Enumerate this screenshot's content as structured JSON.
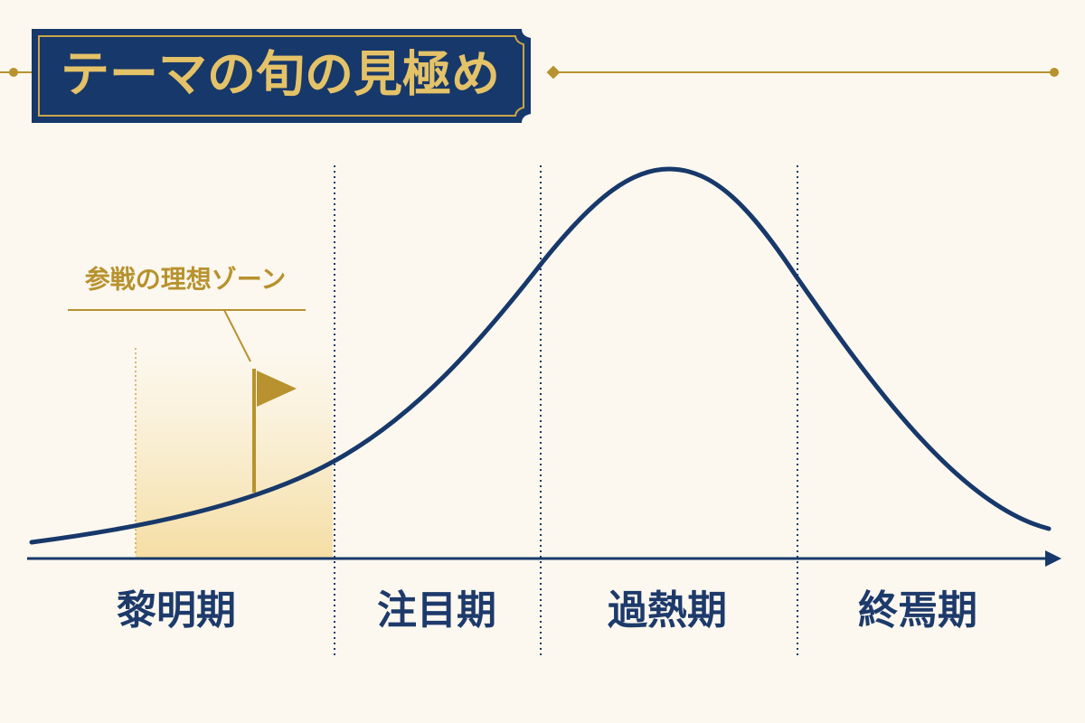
{
  "title": "テーマの旬の見極め",
  "annotation": "参戦の理想ゾーン",
  "phases": [
    "黎明期",
    "注目期",
    "過熱期",
    "終焉期"
  ]
}
